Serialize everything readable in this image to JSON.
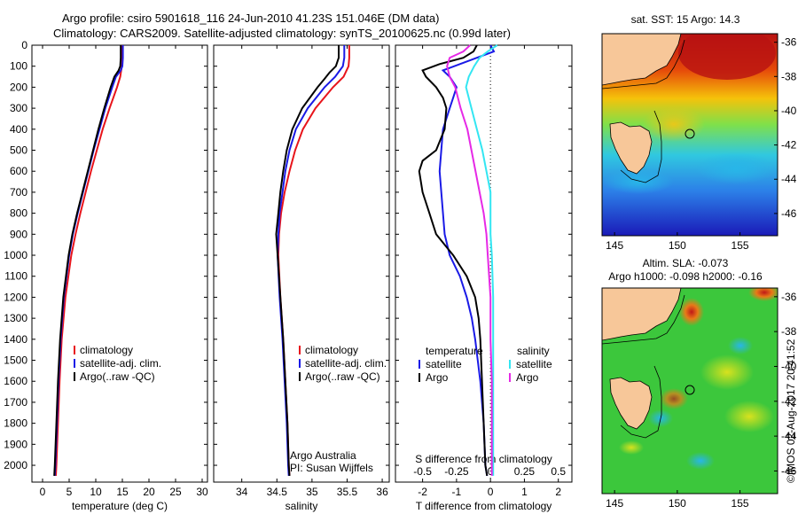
{
  "header": {
    "title_line1": "Argo profile: csiro 5901618_116 24-Jun-2010 41.23S 151.046E (DM data)",
    "title_line2": "Climatology: CARS2009. Satellite-adjusted climatology: synTS_20100625.nc (0.99d later)"
  },
  "stamp": "©IMOS 02-Aug-2017 20:41:52",
  "colors": {
    "climatology": "#e8141b",
    "satellite": "#1a1ae6",
    "argo": "#000000",
    "sat_salinity": "#33e6f2",
    "argo_salinity": "#e629e6",
    "land": "#f7c799"
  },
  "chart_data": [
    {
      "type": "line",
      "id": "temperature",
      "xlabel": "temperature (deg C)",
      "ylabel": "",
      "xlim": [
        -2,
        31
      ],
      "ylim": [
        2080,
        0
      ],
      "xticks": [
        0,
        5,
        10,
        15,
        20,
        25,
        30
      ],
      "yticks": [
        0,
        100,
        200,
        300,
        400,
        500,
        600,
        700,
        800,
        900,
        1000,
        1100,
        1200,
        1300,
        1400,
        1500,
        1600,
        1700,
        1800,
        1900,
        2000
      ],
      "legend": [
        "climatology",
        "satellite-adj. clim.",
        "Argo(..raw -QC)"
      ],
      "series": [
        {
          "name": "climatology",
          "depth": [
            0,
            60,
            100,
            150,
            200,
            300,
            400,
            500,
            600,
            700,
            800,
            900,
            1000,
            1200,
            1400,
            1600,
            1800,
            2000,
            2050
          ],
          "values": [
            15.0,
            15.0,
            14.9,
            14.6,
            14.0,
            12.6,
            11.3,
            10.2,
            9.1,
            8.1,
            7.1,
            6.2,
            5.4,
            4.3,
            3.6,
            3.2,
            2.9,
            2.6,
            2.5
          ]
        },
        {
          "name": "satellite-adj. clim.",
          "depth": [
            0,
            60,
            100,
            120,
            150,
            200,
            300,
            400,
            500,
            600,
            700,
            800,
            900,
            1000,
            1200,
            1400,
            1600,
            1800,
            2000,
            2050
          ],
          "values": [
            15.1,
            15.1,
            15.0,
            14.7,
            13.8,
            13.1,
            11.8,
            10.7,
            9.6,
            8.6,
            7.6,
            6.6,
            5.7,
            5.0,
            4.0,
            3.4,
            3.0,
            2.7,
            2.4,
            2.3
          ]
        },
        {
          "name": "Argo(..raw -QC)",
          "depth": [
            0,
            60,
            100,
            120,
            150,
            200,
            300,
            400,
            500,
            600,
            700,
            800,
            900,
            1000,
            1200,
            1400,
            1600,
            1800,
            2000,
            2050
          ],
          "values": [
            14.7,
            14.7,
            14.6,
            14.3,
            13.5,
            12.8,
            11.6,
            10.5,
            9.5,
            8.5,
            7.5,
            6.5,
            5.6,
            4.9,
            3.9,
            3.3,
            2.9,
            2.6,
            2.3,
            2.2
          ]
        }
      ]
    },
    {
      "type": "line",
      "id": "salinity",
      "xlabel": "salinity",
      "ylabel": "",
      "xlim": [
        33.6,
        36.1
      ],
      "ylim": [
        2080,
        0
      ],
      "xticks": [
        34,
        34.5,
        35,
        35.5,
        36
      ],
      "legend": [
        "climatology",
        "satellite-adj. clim.",
        " Argo(..raw -QC)"
      ],
      "annotation": [
        "Argo Australia",
        "PI: Susan Wijffels"
      ],
      "series": [
        {
          "name": "climatology",
          "depth": [
            0,
            60,
            100,
            150,
            200,
            300,
            400,
            500,
            600,
            700,
            800,
            900,
            1000,
            1200,
            1400,
            1600,
            1800,
            2000,
            2050
          ],
          "values": [
            35.53,
            35.53,
            35.52,
            35.45,
            35.3,
            35.05,
            34.87,
            34.76,
            34.68,
            34.61,
            34.56,
            34.53,
            34.52,
            34.55,
            34.59,
            34.62,
            34.65,
            34.67,
            34.68
          ]
        },
        {
          "name": "satellite-adj. clim.",
          "depth": [
            0,
            60,
            100,
            150,
            200,
            300,
            400,
            500,
            600,
            700,
            800,
            900,
            1000,
            1200,
            1400,
            1600,
            1800,
            2000,
            2050
          ],
          "values": [
            35.46,
            35.46,
            35.44,
            35.33,
            35.18,
            34.94,
            34.77,
            34.68,
            34.62,
            34.58,
            34.54,
            34.52,
            34.51,
            34.54,
            34.58,
            34.61,
            34.64,
            34.66,
            34.67
          ]
        },
        {
          "name": "Argo(..raw -QC)",
          "depth": [
            0,
            60,
            100,
            130,
            160,
            200,
            300,
            400,
            500,
            600,
            700,
            800,
            900,
            1000,
            1200,
            1400,
            1600,
            1800,
            2000,
            2050
          ],
          "values": [
            35.38,
            35.38,
            35.34,
            35.25,
            35.18,
            35.08,
            34.86,
            34.72,
            34.64,
            34.59,
            34.55,
            34.52,
            34.49,
            34.51,
            34.55,
            34.59,
            34.62,
            34.65,
            34.67,
            34.68
          ]
        }
      ]
    },
    {
      "type": "line",
      "id": "differences",
      "xlabel": "T difference from climatology",
      "x2label": "S difference from climatology",
      "xlim": [
        -2.8,
        2.4
      ],
      "ylim": [
        2080,
        0
      ],
      "xticks": [
        -2,
        -1,
        0,
        1,
        2
      ],
      "x2ticks": [
        -0.5,
        -0.25,
        0,
        0.25,
        0.5
      ],
      "legend_titles": [
        "temperature",
        "salinity"
      ],
      "legend": [
        "satellite",
        "Argo",
        "satellite",
        "Argo"
      ],
      "series": [
        {
          "name": "satellite",
          "group": "temperature",
          "depth": [
            0,
            30,
            60,
            90,
            120,
            150,
            200,
            250,
            300,
            400,
            500,
            600,
            700,
            800,
            900,
            1000,
            1100,
            1200,
            1300,
            1400,
            1600,
            1800,
            2000,
            2050
          ],
          "values": [
            0.0,
            0.1,
            -0.4,
            -0.9,
            -1.4,
            -1.2,
            -1.0,
            -1.1,
            -1.2,
            -1.4,
            -1.45,
            -1.5,
            -1.45,
            -1.4,
            -1.35,
            -1.2,
            -0.9,
            -0.7,
            -0.55,
            -0.45,
            -0.3,
            -0.2,
            -0.15,
            -0.1
          ]
        },
        {
          "name": "Argo",
          "group": "temperature",
          "depth": [
            0,
            30,
            60,
            90,
            120,
            150,
            200,
            250,
            300,
            400,
            500,
            550,
            600,
            700,
            800,
            900,
            1000,
            1100,
            1200,
            1300,
            1400,
            1600,
            1800,
            2000,
            2050
          ],
          "values": [
            -0.4,
            -0.5,
            -0.8,
            -1.5,
            -2.0,
            -1.9,
            -1.6,
            -1.4,
            -1.3,
            -1.35,
            -1.6,
            -2.0,
            -2.1,
            -2.0,
            -1.8,
            -1.6,
            -1.1,
            -0.7,
            -0.45,
            -0.35,
            -0.3,
            -0.25,
            -0.2,
            -0.15,
            -0.1
          ]
        },
        {
          "name": "satellite",
          "group": "salinity",
          "depth": [
            0,
            30,
            60,
            100,
            150,
            200,
            300,
            400,
            500,
            600,
            700,
            800,
            900,
            1000,
            1200,
            1400,
            1600,
            1800,
            2000,
            2050
          ],
          "values": [
            0.05,
            -0.02,
            -0.08,
            -0.12,
            -0.16,
            -0.18,
            -0.14,
            -0.1,
            -0.06,
            -0.03,
            0.0,
            0.0,
            0.0,
            0.01,
            0.02,
            0.02,
            0.02,
            0.02,
            0.02,
            0.02
          ]
        },
        {
          "name": "Argo",
          "group": "salinity",
          "depth": [
            0,
            30,
            60,
            100,
            150,
            200,
            300,
            400,
            500,
            600,
            700,
            800,
            900,
            1000,
            1200,
            1400,
            1600,
            1800,
            2000,
            2050
          ],
          "values": [
            -0.15,
            -0.2,
            -0.3,
            -0.32,
            -0.3,
            -0.26,
            -0.22,
            -0.17,
            -0.14,
            -0.11,
            -0.08,
            -0.05,
            -0.03,
            -0.02,
            0.0,
            0.0,
            0.01,
            0.01,
            0.01,
            0.01
          ]
        }
      ]
    },
    {
      "type": "heatmap",
      "id": "sst_map",
      "title": "sat. SST: 15 Argo: 14.3",
      "xlim": [
        144,
        158
      ],
      "ylim": [
        -47.3,
        -35.5
      ],
      "xticks": [
        145,
        150,
        155
      ],
      "yticks": [
        -36,
        -38,
        -40,
        -42,
        -44,
        -46
      ],
      "argo_position": {
        "lon": 151.046,
        "lat": -41.23
      }
    },
    {
      "type": "heatmap",
      "id": "sla_map",
      "title_line1": "Altim. SLA: -0.073",
      "title_line2": "Argo h1000: -0.098 h2000: -0.16",
      "xlim": [
        144,
        158
      ],
      "ylim": [
        -47.3,
        -35.5
      ],
      "xticks": [
        145,
        150,
        155
      ],
      "yticks": [
        -36,
        -38,
        -40,
        -42,
        -44,
        -46
      ],
      "argo_position": {
        "lon": 151.046,
        "lat": -41.23
      }
    }
  ]
}
